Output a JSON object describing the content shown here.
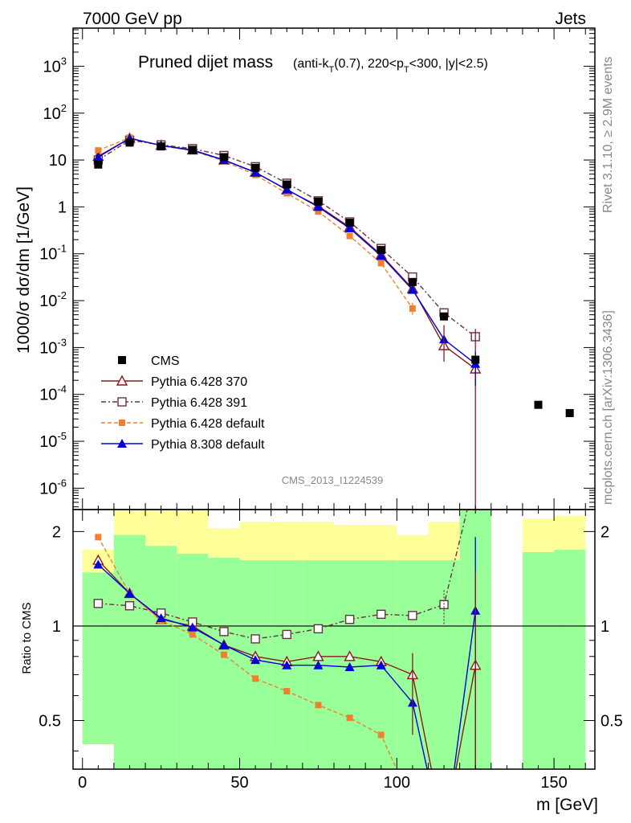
{
  "header": {
    "left": "7000 GeV pp",
    "right": "Jets"
  },
  "side_labels": {
    "rivet": "Rivet 3.1.10, ≥ 2.9M events",
    "mcplots": "mcplots.cern.ch [arXiv:1306.3436]"
  },
  "watermark": "CMS_2013_I1224539",
  "chart_data": {
    "type": "scatter",
    "title": "Pruned dijet mass",
    "title_sub": "(anti-k_T(0.7), 220<p_T<300, |y|<2.5)",
    "ylabel": "1000/σ dσ/dm [1/GeV]",
    "ratio_ylabel": "Ratio to CMS",
    "xlabel": "m [GeV]",
    "xlim": [
      -3,
      163
    ],
    "ylim_log": [
      3.5e-07,
      6500
    ],
    "ratio_ylim": [
      0.35,
      2.35
    ],
    "yscale": "log",
    "x_ticks": [
      0,
      50,
      100,
      150
    ],
    "y_ticks": [
      "10^-6",
      "10^-5",
      "10^-4",
      "10^-3",
      "10^-2",
      "10^-1",
      "1",
      "10",
      "10^2",
      "10^3"
    ],
    "ratio_ticks": [
      "0.5",
      "1",
      "2"
    ],
    "legend": [
      {
        "label": "CMS",
        "color": "#000000",
        "marker": "square"
      },
      {
        "label": "Pythia 6.428 370",
        "color": "#8b1a1a",
        "marker": "open-triangle"
      },
      {
        "label": "Pythia 6.428 391",
        "color": "#6b3040",
        "marker": "open-square"
      },
      {
        "label": "Pythia 6.428 default",
        "color": "#f08030",
        "marker": "filled-square"
      },
      {
        "label": "Pythia 8.308 default",
        "color": "#0000dd",
        "marker": "filled-triangle"
      }
    ],
    "data": {
      "x": [
        5,
        15,
        25,
        35,
        45,
        55,
        65,
        75,
        85,
        95,
        105,
        115,
        125,
        145,
        155
      ],
      "y": [
        8.0,
        23.5,
        19.5,
        16.5,
        11.5,
        6.8,
        3.0,
        1.3,
        0.46,
        0.12,
        0.025,
        0.0046,
        0.00055,
        6e-05,
        4e-05
      ]
    },
    "bands": {
      "edges": [
        0,
        10,
        20,
        30,
        40,
        50,
        60,
        70,
        80,
        90,
        100,
        110,
        120,
        130,
        140,
        150,
        160
      ],
      "stat_lo": [
        0.42,
        0.35,
        0.35,
        0.35,
        0.35,
        0.35,
        0.35,
        0.35,
        0.35,
        0.35,
        0.35,
        0.35,
        0.35,
        null,
        0.35,
        0.35
      ],
      "stat_hi": [
        1.48,
        1.95,
        1.8,
        1.7,
        1.65,
        1.62,
        1.62,
        1.62,
        1.62,
        1.62,
        1.62,
        1.62,
        2.35,
        null,
        1.72,
        1.75
      ],
      "syst_lo": [
        0.42,
        0.35,
        0.35,
        0.35,
        0.45,
        0.45,
        0.42,
        0.4,
        0.42,
        0.45,
        0.35,
        0.35,
        0.35,
        null,
        0.35,
        0.35
      ],
      "syst_hi": [
        1.75,
        2.35,
        2.35,
        2.35,
        2.05,
        2.15,
        2.15,
        2.15,
        2.1,
        2.1,
        1.95,
        2.15,
        2.35,
        null,
        2.2,
        2.25
      ]
    },
    "series": [
      {
        "name": "Pythia 6.428 370",
        "x": [
          5,
          15,
          25,
          35,
          45,
          55,
          65,
          75,
          85,
          95,
          105,
          115,
          125
        ],
        "y": [
          12.0,
          29.0,
          20.5,
          16.5,
          10.0,
          5.5,
          2.3,
          1.05,
          0.37,
          0.095,
          0.018,
          0.0011,
          0.00035
        ],
        "ratio": [
          1.62,
          1.27,
          1.05,
          1.0,
          0.87,
          0.8,
          0.77,
          0.8,
          0.8,
          0.77,
          0.7,
          0.22,
          0.75
        ]
      },
      {
        "name": "Pythia 6.428 391",
        "x": [
          5,
          15,
          25,
          35,
          45,
          55,
          65,
          75,
          85,
          95,
          105,
          115,
          125
        ],
        "y": [
          10.0,
          26.5,
          21.0,
          17.5,
          12.5,
          7.2,
          3.2,
          1.35,
          0.48,
          0.13,
          0.032,
          0.0055,
          0.0017
        ],
        "ratio": [
          1.18,
          1.16,
          1.1,
          1.03,
          0.96,
          0.91,
          0.94,
          0.98,
          1.05,
          1.09,
          1.08,
          1.17,
          3.0
        ]
      },
      {
        "name": "Pythia 6.428 default",
        "x": [
          5,
          15,
          25,
          35,
          45,
          55,
          65,
          75,
          85,
          95,
          105
        ],
        "y": [
          16.0,
          30.0,
          20.0,
          16.0,
          9.5,
          4.8,
          1.95,
          0.8,
          0.24,
          0.063,
          0.0068
        ],
        "ratio": [
          1.92,
          1.27,
          1.04,
          0.94,
          0.81,
          0.68,
          0.62,
          0.56,
          0.51,
          0.45,
          0.27
        ]
      },
      {
        "name": "Pythia 8.308 default",
        "x": [
          5,
          15,
          25,
          35,
          45,
          55,
          65,
          75,
          85,
          95,
          105,
          115,
          125
        ],
        "y": [
          11.5,
          29.0,
          20.5,
          16.0,
          10.0,
          5.4,
          2.35,
          1.0,
          0.35,
          0.09,
          0.017,
          0.0015,
          0.00045
        ],
        "ratio": [
          1.57,
          1.27,
          1.06,
          0.99,
          0.87,
          0.78,
          0.75,
          0.75,
          0.74,
          0.75,
          0.57,
          0.2,
          1.12
        ]
      }
    ]
  }
}
